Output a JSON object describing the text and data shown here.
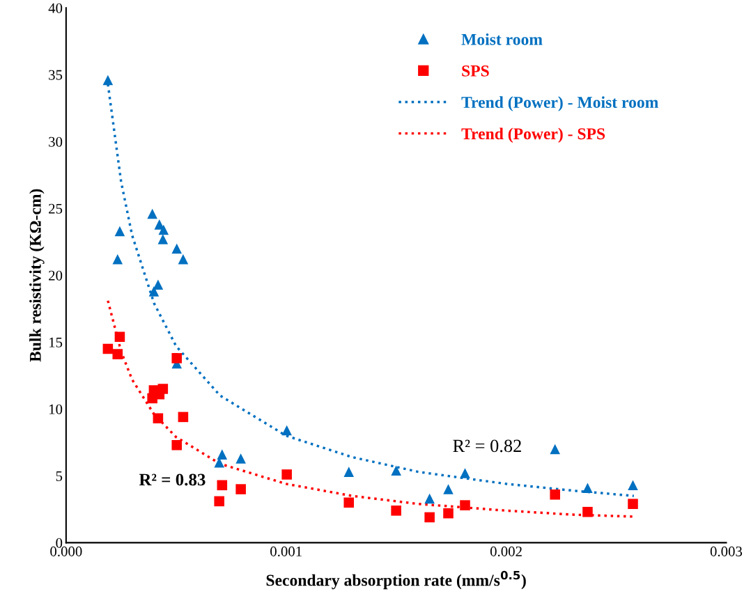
{
  "chart_data": {
    "type": "scatter",
    "xlabel": "Secondary absorption rate (mm/s$^{0.5}$)",
    "ylabel": "Bulk resistivity (KΩ-cm)",
    "xlim": [
      0,
      0.003
    ],
    "xticks": [
      {
        "value": 0,
        "label": "0.000"
      },
      {
        "value": 0.001,
        "label": "0.001"
      },
      {
        "value": 0.002,
        "label": "0.002"
      },
      {
        "value": 0.003,
        "label": "0.003"
      }
    ],
    "ylim": [
      0,
      40
    ],
    "yticks": [
      0,
      5,
      10,
      15,
      20,
      25,
      30,
      35,
      40
    ],
    "grid": false,
    "legend": "top right",
    "series": [
      {
        "name": "Moist room",
        "marker": "triangle",
        "color": "#0070c0",
        "x": [
          0.00019,
          0.000234,
          0.000244,
          0.000392,
          0.000399,
          0.000418,
          0.000424,
          0.000443,
          0.00044,
          0.000503,
          0.000532,
          0.000503,
          0.000696,
          0.000709,
          0.000794,
          0.001003,
          0.001285,
          0.0015,
          0.001652,
          0.001737,
          0.001813,
          0.002222,
          0.00237,
          0.002576
        ],
        "values": [
          34.6,
          21.2,
          23.3,
          24.6,
          18.8,
          19.3,
          23.8,
          23.4,
          22.7,
          22.0,
          21.2,
          13.4,
          6.0,
          6.6,
          6.3,
          8.4,
          5.3,
          5.4,
          3.3,
          4.0,
          5.2,
          7.0,
          4.1,
          4.3
        ]
      },
      {
        "name": "SPS",
        "marker": "square",
        "color": "#ff0000",
        "x": [
          0.00019,
          0.000234,
          0.000244,
          0.000392,
          0.000399,
          0.000418,
          0.000424,
          0.00044,
          0.000503,
          0.000532,
          0.000503,
          0.000696,
          0.000709,
          0.000794,
          0.001003,
          0.001285,
          0.0015,
          0.001652,
          0.001737,
          0.001813,
          0.002222,
          0.00237,
          0.002576
        ],
        "values": [
          14.5,
          14.1,
          15.4,
          10.8,
          11.4,
          9.3,
          11.1,
          11.5,
          13.8,
          9.4,
          7.3,
          3.1,
          4.3,
          4.0,
          5.1,
          3.0,
          2.4,
          1.9,
          2.2,
          2.8,
          3.6,
          2.3,
          2.9
        ]
      },
      {
        "name": "Trend (Power) - Moist room",
        "type": "line",
        "marker": "none",
        "line_style": "dotted",
        "color": "#0070c0",
        "x": [
          0.00019,
          0.00025,
          0.0003,
          0.0004,
          0.0005,
          0.0007,
          0.001,
          0.0013,
          0.0016,
          0.002,
          0.0023,
          0.00258
        ],
        "values": [
          34.3,
          27.0,
          23.0,
          17.9,
          14.7,
          11.0,
          8.0,
          6.4,
          5.3,
          4.4,
          3.9,
          3.5
        ]
      },
      {
        "name": "Trend (Power) - SPS",
        "type": "line",
        "marker": "none",
        "line_style": "dotted",
        "color": "#ff0000",
        "x": [
          0.00019,
          0.00025,
          0.0003,
          0.0004,
          0.0005,
          0.0007,
          0.001,
          0.0013,
          0.0016,
          0.002,
          0.0023,
          0.00258
        ],
        "values": [
          18.1,
          14.3,
          12.2,
          9.6,
          7.9,
          5.9,
          4.4,
          3.5,
          2.9,
          2.4,
          2.1,
          1.95
        ]
      }
    ],
    "annotations": [
      "R² = 0.82",
      "R² = 0.83"
    ]
  }
}
